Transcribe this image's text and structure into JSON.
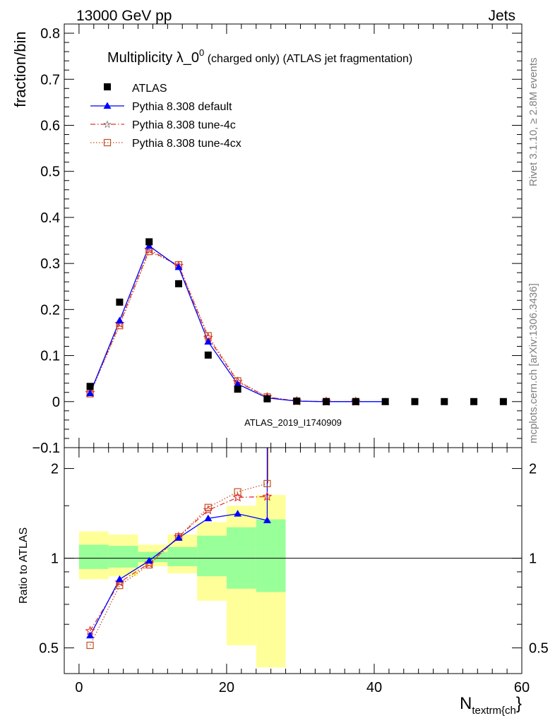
{
  "header": {
    "left": "13000 GeV pp",
    "right": "Jets"
  },
  "title": {
    "main": "Multiplicity λ_0",
    "sup": "0",
    "rest": " (charged only) (ATLAS jet fragmentation)"
  },
  "side_labels": {
    "rivet": "Rivet 3.1.10, ≥ 2.8M events",
    "mcplots": "mcplots.cern.ch [arXiv:1306.3436]"
  },
  "watermark": "ATLAS_2019_I1740909",
  "axes": {
    "ylabel_top": "fraction/bin",
    "ylabel_bottom": "Ratio to ATLAS",
    "xlabel_main": "N",
    "xlabel_sub": "textrm{ch",
    "xlabel_tail": "}"
  },
  "colors": {
    "atlas": "#000000",
    "default": "#0000ff",
    "tune4c": "#e03030",
    "tune4cx": "#c05020",
    "band_outer": "#ffff99",
    "band_inner": "#99ff99"
  },
  "chart_data": [
    {
      "type": "scatter",
      "panel": "main",
      "ylabel": "fraction/bin",
      "xlim": [
        -2,
        60
      ],
      "ylim": [
        -0.1,
        0.82
      ],
      "x_ticks": [
        0,
        20,
        40,
        60
      ],
      "y_ticks": [
        -0.1,
        0,
        0.1,
        0.2,
        0.3,
        0.4,
        0.5,
        0.6,
        0.7,
        0.8
      ],
      "y_tick_labels": [
        "−0.1",
        "0",
        "0.1",
        "0.2",
        "0.3",
        "0.4",
        "0.5",
        "0.6",
        "0.7",
        "0.8"
      ],
      "legend_position": "top-left",
      "series": [
        {
          "name": "ATLAS",
          "style": "data",
          "x": [
            1.5,
            5.5,
            9.5,
            13.5,
            17.5,
            21.5,
            25.5,
            29.5,
            33.5,
            37.5,
            41.5,
            45.5,
            49.5,
            53.5,
            57.5
          ],
          "y": [
            0.033,
            0.216,
            0.347,
            0.256,
            0.101,
            0.027,
            0.006,
            0.001,
            0.0,
            0.0,
            0.0,
            0.0,
            0.0,
            0.0,
            0.0
          ]
        },
        {
          "name": "Pythia 8.308 default",
          "style": "solid",
          "marker": "triangle",
          "x": [
            1.5,
            5.5,
            9.5,
            13.5,
            17.5,
            21.5,
            25.5,
            29.5,
            33.5,
            37.5,
            41.5
          ],
          "y": [
            0.018,
            0.176,
            0.338,
            0.292,
            0.13,
            0.038,
            0.008,
            0.001,
            0.0,
            0.0,
            0.0
          ]
        },
        {
          "name": "Pythia 8.308 tune-4c",
          "style": "dashdot",
          "marker": "star",
          "x": [
            1.5,
            5.5,
            9.5,
            13.5,
            17.5,
            21.5,
            25.5,
            29.5,
            33.5,
            37.5
          ],
          "y": [
            0.019,
            0.169,
            0.33,
            0.295,
            0.139,
            0.043,
            0.01,
            0.001,
            0.0,
            0.0
          ]
        },
        {
          "name": "Pythia 8.308 tune-4cx",
          "style": "dotted",
          "marker": "open-square",
          "x": [
            1.5,
            5.5,
            9.5,
            13.5,
            17.5,
            21.5,
            25.5,
            29.5,
            33.5,
            37.5
          ],
          "y": [
            0.017,
            0.165,
            0.326,
            0.297,
            0.143,
            0.045,
            0.01,
            0.001,
            0.0,
            0.0
          ]
        }
      ]
    },
    {
      "type": "line",
      "panel": "ratio",
      "ylabel": "Ratio to ATLAS",
      "yscale": "log",
      "xlim": [
        -2,
        60
      ],
      "ylim": [
        0.41,
        2.35
      ],
      "x_ticks": [
        0,
        20,
        40,
        60
      ],
      "y_ticks": [
        0.5,
        1,
        2
      ],
      "bands": {
        "x_edges": [
          0,
          4,
          8,
          12,
          16,
          20,
          24,
          28
        ],
        "outer_low": [
          0.85,
          0.87,
          0.94,
          0.89,
          0.72,
          0.51,
          0.43
        ],
        "outer_high": [
          1.23,
          1.2,
          1.11,
          1.2,
          1.32,
          1.5,
          1.63
        ],
        "inner_low": [
          0.92,
          0.93,
          0.97,
          0.94,
          0.87,
          0.79,
          0.77
        ],
        "inner_high": [
          1.11,
          1.1,
          1.05,
          1.09,
          1.19,
          1.27,
          1.35
        ]
      },
      "series": [
        {
          "name": "Pythia 8.308 default",
          "x": [
            1.5,
            5.5,
            9.5,
            13.5,
            17.5,
            21.5,
            25.5
          ],
          "y": [
            0.55,
            0.85,
            0.98,
            1.17,
            1.36,
            1.41,
            1.34
          ]
        },
        {
          "name": "Pythia 8.308 tune-4c",
          "x": [
            1.5,
            5.5,
            9.5,
            13.5,
            17.5,
            21.5,
            25.5
          ],
          "y": [
            0.57,
            0.83,
            0.96,
            1.18,
            1.45,
            1.6,
            1.61
          ]
        },
        {
          "name": "Pythia 8.308 tune-4cx",
          "x": [
            1.5,
            5.5,
            9.5,
            13.5,
            17.5,
            21.5,
            25.5
          ],
          "y": [
            0.51,
            0.81,
            0.95,
            1.18,
            1.48,
            1.67,
            1.78
          ]
        }
      ]
    }
  ]
}
